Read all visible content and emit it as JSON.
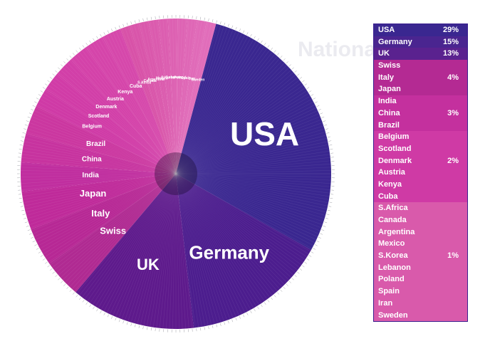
{
  "watermark": "Nationality",
  "colors": {
    "usa": "#3a2790",
    "germany": "#4c1d8e",
    "uk": "#5e1a8c",
    "swiss": "#b02a92",
    "italy": "#b72895",
    "japan": "#bf2a9a",
    "india": "#c02e9f",
    "china": "#c7339f",
    "brazil": "#cb37a0",
    "small_2pct": "#cf3aa6",
    "small_1pct": "#d852a8"
  },
  "chart_data": {
    "type": "pie",
    "title": "Nationality",
    "slices": [
      {
        "name": "USA",
        "value": 29,
        "color": "#3a2790",
        "label_size": 46
      },
      {
        "name": "Germany",
        "value": 15,
        "color": "#4c1d8e",
        "label_size": 26
      },
      {
        "name": "UK",
        "value": 13,
        "color": "#5e1a8c",
        "label_size": 22
      },
      {
        "name": "Swiss",
        "value": 4,
        "color": "#b02a92",
        "label_size": 13
      },
      {
        "name": "Italy",
        "value": 4,
        "color": "#b72895",
        "label_size": 13
      },
      {
        "name": "Japan",
        "value": 4,
        "color": "#bf2a9a",
        "label_size": 13
      },
      {
        "name": "India",
        "value": 3,
        "color": "#c02e9f",
        "label_size": 10
      },
      {
        "name": "China",
        "value": 3,
        "color": "#c7339f",
        "label_size": 10
      },
      {
        "name": "Brazil",
        "value": 3,
        "color": "#cb37a0",
        "label_size": 10
      },
      {
        "name": "Belgium",
        "value": 2,
        "color": "#cf3aa6",
        "label_size": 7
      },
      {
        "name": "Scotland",
        "value": 2,
        "color": "#d13ca7",
        "label_size": 7
      },
      {
        "name": "Denmark",
        "value": 2,
        "color": "#d23fa8",
        "label_size": 7
      },
      {
        "name": "Austria",
        "value": 2,
        "color": "#d442a9",
        "label_size": 7
      },
      {
        "name": "Kenya",
        "value": 2,
        "color": "#d545aa",
        "label_size": 7
      },
      {
        "name": "Cuba",
        "value": 2,
        "color": "#d648ab",
        "label_size": 7
      },
      {
        "name": "S.Africa",
        "value": 1,
        "color": "#d852a8",
        "label_size": 5
      },
      {
        "name": "Canada",
        "value": 1,
        "color": "#d955aa",
        "label_size": 5
      },
      {
        "name": "Argentina",
        "value": 1,
        "color": "#da58ac",
        "label_size": 5
      },
      {
        "name": "Mexico",
        "value": 1,
        "color": "#db5bae",
        "label_size": 5
      },
      {
        "name": "S.Korea",
        "value": 1,
        "color": "#dc5eb0",
        "label_size": 5
      },
      {
        "name": "Lebanon",
        "value": 1,
        "color": "#dd61b2",
        "label_size": 5
      },
      {
        "name": "Poland",
        "value": 1,
        "color": "#de64b4",
        "label_size": 5
      },
      {
        "name": "Spain",
        "value": 1,
        "color": "#df67b6",
        "label_size": 5
      },
      {
        "name": "Iran",
        "value": 1,
        "color": "#e06ab8",
        "label_size": 5
      },
      {
        "name": "Sweden",
        "value": 1,
        "color": "#e16dba",
        "label_size": 5
      }
    ]
  },
  "legend": {
    "rows": [
      {
        "name": "USA",
        "pct": "29%",
        "color": "#3a2790"
      },
      {
        "name": "Germany",
        "pct": "15%",
        "color": "#4a2590"
      },
      {
        "name": "UK",
        "pct": "13%",
        "color": "#5a228f"
      },
      {
        "name": "Swiss",
        "pct": "",
        "color": "#b42a93"
      },
      {
        "name": "Italy",
        "pct": "4%",
        "color": "#b42a93"
      },
      {
        "name": "Japan",
        "pct": "",
        "color": "#b42a93"
      },
      {
        "name": "India",
        "pct": "",
        "color": "#c4309e"
      },
      {
        "name": "China",
        "pct": "3%",
        "color": "#c4309e"
      },
      {
        "name": "Brazil",
        "pct": "",
        "color": "#c4309e"
      },
      {
        "name": "Belgium",
        "pct": "",
        "color": "#cf3aa5"
      },
      {
        "name": "Scotland",
        "pct": "",
        "color": "#cf3aa5"
      },
      {
        "name": "Denmark",
        "pct": "2%",
        "color": "#cf3aa5"
      },
      {
        "name": "Austria",
        "pct": "",
        "color": "#cf3aa5"
      },
      {
        "name": "Kenya",
        "pct": "",
        "color": "#cf3aa5"
      },
      {
        "name": "Cuba",
        "pct": "",
        "color": "#cf3aa5"
      },
      {
        "name": "S.Africa",
        "pct": "",
        "color": "#d95aab"
      },
      {
        "name": "Canada",
        "pct": "",
        "color": "#d95aab"
      },
      {
        "name": "Argentina",
        "pct": "",
        "color": "#d95aab"
      },
      {
        "name": "Mexico",
        "pct": "",
        "color": "#d95aab"
      },
      {
        "name": "S.Korea",
        "pct": "1%",
        "color": "#d95aab"
      },
      {
        "name": "Lebanon",
        "pct": "",
        "color": "#d95aab"
      },
      {
        "name": "Poland",
        "pct": "",
        "color": "#d95aab"
      },
      {
        "name": "Spain",
        "pct": "",
        "color": "#d95aab"
      },
      {
        "name": "Iran",
        "pct": "",
        "color": "#d95aab"
      },
      {
        "name": "Sweden",
        "pct": "",
        "color": "#d95aab"
      }
    ]
  }
}
